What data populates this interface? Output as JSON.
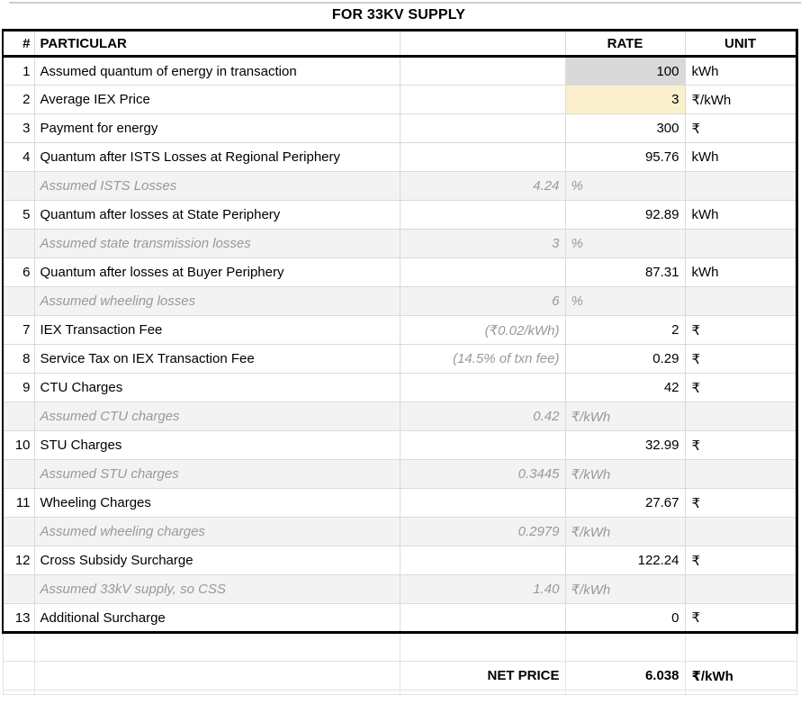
{
  "title": "FOR 33KV SUPPLY",
  "header": {
    "num": "#",
    "particular": "PARTICULAR",
    "note": "",
    "rate": "RATE",
    "unit": "UNIT"
  },
  "rows": [
    {
      "type": "main",
      "num": "1",
      "particular": "Assumed quantum of energy in transaction",
      "note": "",
      "rate": "100",
      "unit": "kWh",
      "rate_bg": "gray"
    },
    {
      "type": "main",
      "num": "2",
      "particular": "Average IEX Price",
      "note": "",
      "rate": "3",
      "unit": "₹/kWh",
      "rate_bg": "yellow"
    },
    {
      "type": "main",
      "num": "3",
      "particular": "Payment for energy",
      "note": "",
      "rate": "300",
      "unit": "₹"
    },
    {
      "type": "main",
      "num": "4",
      "particular": "Quantum after ISTS Losses at Regional Periphery",
      "note": "",
      "rate": "95.76",
      "unit": "kWh"
    },
    {
      "type": "assumption",
      "num": "",
      "particular": "Assumed ISTS Losses",
      "note": "4.24",
      "rate": "%",
      "unit": ""
    },
    {
      "type": "main",
      "num": "5",
      "particular": "Quantum after losses at State Periphery",
      "note": "",
      "rate": "92.89",
      "unit": "kWh"
    },
    {
      "type": "assumption",
      "num": "",
      "particular": "Assumed state transmission losses",
      "note": "3",
      "rate": "%",
      "unit": ""
    },
    {
      "type": "main",
      "num": "6",
      "particular": "Quantum after losses at Buyer Periphery",
      "note": "",
      "rate": "87.31",
      "unit": "kWh"
    },
    {
      "type": "assumption",
      "num": "",
      "particular": "Assumed wheeling losses",
      "note": "6",
      "rate": "%",
      "unit": ""
    },
    {
      "type": "main",
      "num": "7",
      "particular": "IEX Transaction Fee",
      "note": "(₹0.02/kWh)",
      "rate": "2",
      "unit": "₹"
    },
    {
      "type": "main",
      "num": "8",
      "particular": "Service Tax on IEX Transaction Fee",
      "note": "(14.5% of txn fee)",
      "rate": "0.29",
      "unit": "₹"
    },
    {
      "type": "main",
      "num": "9",
      "particular": "CTU Charges",
      "note": "",
      "rate": "42",
      "unit": "₹"
    },
    {
      "type": "assumption",
      "num": "",
      "particular": "Assumed CTU charges",
      "note": "0.42",
      "rate": "₹/kWh",
      "unit": ""
    },
    {
      "type": "main",
      "num": "10",
      "particular": "STU Charges",
      "note": "",
      "rate": "32.99",
      "unit": "₹"
    },
    {
      "type": "assumption",
      "num": "",
      "particular": "Assumed STU charges",
      "note": "0.3445",
      "rate": "₹/kWh",
      "unit": ""
    },
    {
      "type": "main",
      "num": "11",
      "particular": "Wheeling Charges",
      "note": "",
      "rate": "27.67",
      "unit": "₹"
    },
    {
      "type": "assumption",
      "num": "",
      "particular": "Assumed wheeling charges",
      "note": "0.2979",
      "rate": "₹/kWh",
      "unit": ""
    },
    {
      "type": "main",
      "num": "12",
      "particular": "Cross Subsidy Surcharge",
      "note": "",
      "rate": "122.24",
      "unit": "₹"
    },
    {
      "type": "assumption",
      "num": "",
      "particular": "Assumed 33kV supply, so CSS",
      "note": "1.40",
      "rate": "₹/kWh",
      "unit": ""
    },
    {
      "type": "main",
      "num": "13",
      "particular": "Additional Surcharge",
      "note": "",
      "rate": "0",
      "unit": "₹"
    }
  ],
  "net": {
    "label": "NET PRICE",
    "value": "6.038",
    "unit": "₹/kWh"
  },
  "colors": {
    "rate_gray": "#d9d9d9",
    "rate_yellow": "#faf0cc",
    "assumption_bg": "#f3f3f3",
    "assumption_text": "#999999",
    "gridline": "#dadada",
    "border": "#000000"
  }
}
